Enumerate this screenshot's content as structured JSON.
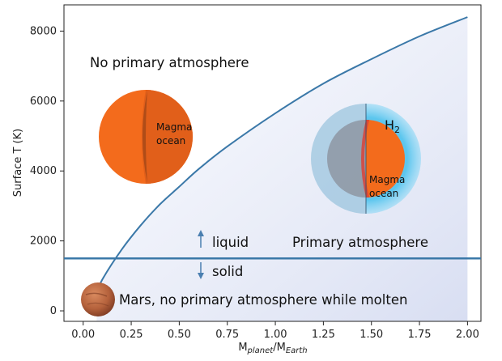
{
  "chart_data": {
    "type": "line",
    "xlabel": "M",
    "xlabel_sub1": "planet",
    "xlabel_sep": "/M",
    "xlabel_sub2": "Earth",
    "ylabel": "Surface T (K)",
    "xlim": [
      -0.1,
      2.07
    ],
    "ylim": [
      -300,
      8750
    ],
    "x_ticks": [
      0.0,
      0.25,
      0.5,
      0.75,
      1.0,
      1.25,
      1.5,
      1.75,
      2.0
    ],
    "x_tick_labels": [
      "0.00",
      "0.25",
      "0.50",
      "0.75",
      "1.00",
      "1.25",
      "1.50",
      "1.75",
      "2.00"
    ],
    "y_ticks": [
      0,
      2000,
      4000,
      6000,
      8000
    ],
    "y_tick_labels": [
      "0",
      "2000",
      "4000",
      "6000",
      "8000"
    ],
    "grid": false,
    "series": [
      {
        "x": [
          0.07,
          0.1,
          0.2,
          0.3,
          0.4,
          0.5,
          0.6,
          0.75,
          1.0,
          1.25,
          1.5,
          1.75,
          2.0
        ],
        "y": [
          500,
          900,
          1750,
          2450,
          3050,
          3550,
          4050,
          4700,
          5650,
          6500,
          7200,
          7850,
          8400
        ]
      }
    ],
    "reference_lines": [
      {
        "axis": "y",
        "value": 1500
      }
    ],
    "annotations": {
      "no_primary": "No primary atmosphere",
      "primary": "Primary atmosphere",
      "liquid": "liquid",
      "solid": "solid",
      "mars": "Mars, no primary atmosphere while molten",
      "magma_1": "Magma",
      "ocean_1": "ocean",
      "magma_2": "Magma",
      "ocean_2": "ocean",
      "h2_main": "H",
      "h2_sub": "2"
    },
    "colors": {
      "curve": "#3a78a8",
      "threshold": "#3a78a8",
      "region_fill": "#dde3f3",
      "magma": "#f36b1c",
      "magma_shadow": "#c9551b",
      "atmosphere": "#5cc6ee",
      "mars": "#b5623c",
      "arrow": "#4a7fb0"
    }
  }
}
